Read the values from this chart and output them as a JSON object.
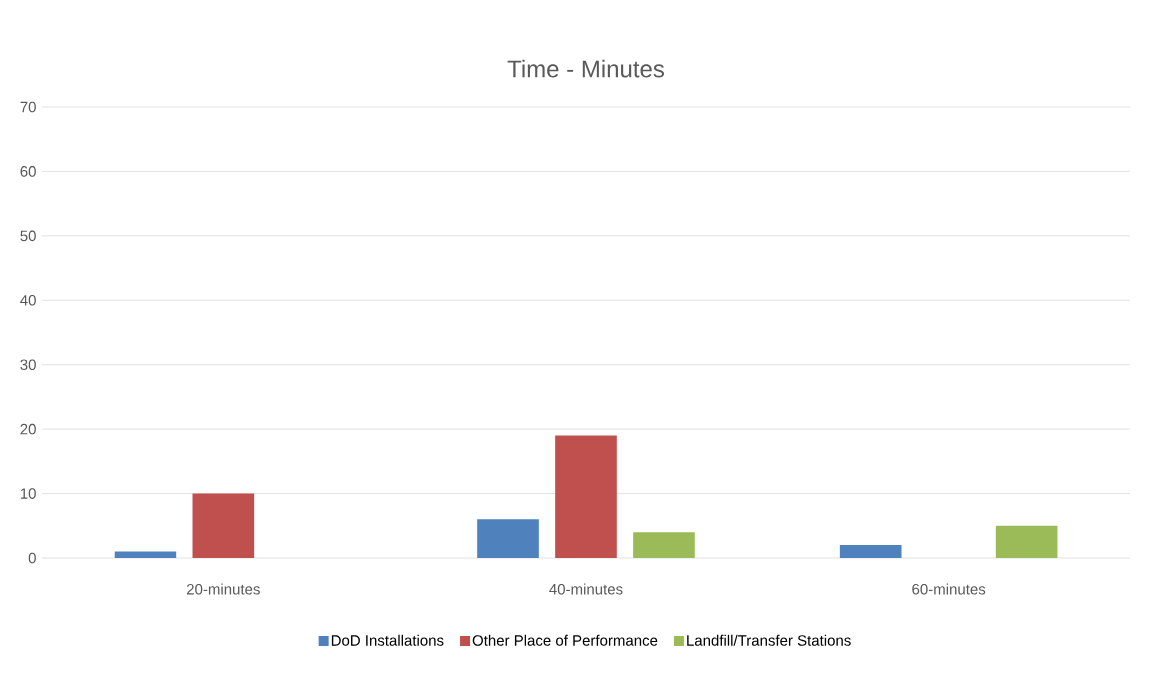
{
  "chart_data": {
    "type": "bar",
    "title": "Time - Minutes",
    "categories": [
      "20-minutes",
      "40-minutes",
      "60-minutes"
    ],
    "series": [
      {
        "name": "DoD Installations",
        "color": "#4f81bd",
        "values": [
          1,
          6,
          2
        ]
      },
      {
        "name": "Other Place of Performance",
        "color": "#c0504d",
        "values": [
          10,
          19,
          0
        ]
      },
      {
        "name": "Landfill/Transfer Stations",
        "color": "#9bbb59",
        "values": [
          0,
          4,
          5
        ]
      }
    ],
    "ylim": [
      0,
      70
    ],
    "yticks": [
      0,
      10,
      20,
      30,
      40,
      50,
      60,
      70
    ],
    "grid": "y",
    "legend": "bottom"
  }
}
